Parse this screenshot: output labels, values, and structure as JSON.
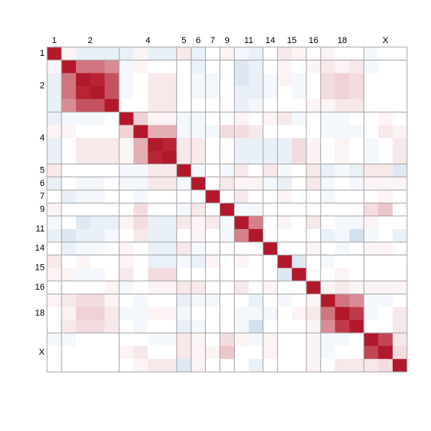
{
  "chart_data": {
    "type": "heatmap",
    "categories": [
      "1",
      "2",
      "2",
      "2",
      "2",
      "4",
      "4",
      "4",
      "4",
      "5",
      "6",
      "7",
      "9",
      "11",
      "11",
      "14",
      "15",
      "15",
      "16",
      "18",
      "18",
      "18",
      "X",
      "X",
      "X"
    ],
    "zlim": [
      -1,
      1
    ],
    "colors": {
      "low": "#2166ac",
      "mid": "#ffffff",
      "high": "#b2182b"
    },
    "matrix": [
      [
        1,
        0.05,
        -0.1,
        -0.1,
        -0.1,
        -0.1,
        0.05,
        -0.1,
        -0.1,
        0.1,
        -0.1,
        0,
        0.05,
        -0.05,
        -0.1,
        0,
        0.1,
        0.05,
        0,
        0.05,
        0,
        0,
        -0.05,
        0,
        0
      ],
      [
        0.05,
        1,
        0.6,
        0.6,
        0.5,
        -0.05,
        0.05,
        0,
        0,
        0,
        -0.1,
        0,
        0,
        -0.15,
        -0.1,
        0,
        0.05,
        0,
        0.05,
        0.1,
        0.05,
        0.1,
        -0.05,
        0,
        0
      ],
      [
        -0.1,
        0.6,
        1,
        0.95,
        0.75,
        -0.05,
        0,
        0.1,
        0.1,
        0,
        -0.05,
        -0.05,
        0,
        -0.15,
        -0.1,
        -0.05,
        0.05,
        -0.05,
        0,
        0.15,
        0.2,
        0.15,
        0,
        0,
        0
      ],
      [
        -0.1,
        0.6,
        0.95,
        1,
        0.75,
        -0.05,
        0,
        0.1,
        0.1,
        0,
        -0.05,
        -0.05,
        0,
        -0.1,
        -0.1,
        -0.05,
        0,
        -0.05,
        0,
        0.15,
        0.2,
        0.15,
        0,
        0,
        0
      ],
      [
        -0.1,
        0.5,
        0.75,
        0.75,
        1,
        0,
        0,
        0.1,
        0.1,
        0,
        0,
        0,
        0,
        -0.1,
        -0.05,
        0,
        0,
        0,
        0.05,
        0.05,
        0.1,
        0.1,
        0,
        0,
        0
      ],
      [
        -0.1,
        -0.05,
        -0.05,
        -0.05,
        0,
        1,
        0.2,
        0.05,
        0.05,
        -0.05,
        -0.05,
        0,
        0,
        0.05,
        0,
        0.05,
        0.1,
        -0.05,
        0,
        -0.05,
        -0.05,
        0,
        0,
        0.05,
        0
      ],
      [
        0.05,
        0.05,
        0,
        0,
        0,
        0.2,
        1,
        0.35,
        0.35,
        -0.05,
        -0.05,
        -0.05,
        0.15,
        0.15,
        0.1,
        0,
        0,
        0,
        0,
        -0.05,
        -0.05,
        -0.05,
        0,
        0.1,
        0.05
      ],
      [
        -0.1,
        0,
        0.1,
        0.1,
        0.1,
        0.05,
        0.35,
        1,
        0.95,
        0.1,
        0.1,
        0,
        0,
        -0.1,
        -0.1,
        -0.1,
        -0.1,
        0.15,
        0.05,
        0,
        0.05,
        0,
        -0.05,
        0,
        0.1
      ],
      [
        -0.1,
        0,
        0.1,
        0.1,
        0.1,
        0.05,
        0.35,
        0.95,
        1,
        0.1,
        0.1,
        0,
        0,
        -0.1,
        -0.1,
        -0.1,
        -0.1,
        0.15,
        0.05,
        0,
        0.05,
        0,
        -0.05,
        0,
        0.1
      ],
      [
        0.1,
        0,
        0,
        0,
        0,
        -0.05,
        -0.05,
        0.1,
        0.1,
        1,
        -0.05,
        0,
        -0.05,
        0.1,
        0,
        0.1,
        -0.05,
        0,
        0.1,
        -0.1,
        -0.05,
        -0.1,
        0.1,
        0.1,
        -0.15
      ],
      [
        -0.1,
        0,
        -0.05,
        -0.05,
        0,
        -0.05,
        -0.05,
        0.1,
        0.1,
        -0.05,
        1,
        0,
        0.1,
        0.05,
        0.05,
        -0.05,
        -0.1,
        0,
        0.1,
        -0.05,
        0,
        -0.05,
        0.05,
        0.05,
        0.05
      ],
      [
        0,
        -0.1,
        -0.05,
        -0.05,
        0,
        0,
        -0.05,
        0,
        0,
        0,
        0,
        1,
        0,
        0.1,
        0,
        0,
        0.05,
        0,
        0,
        -0.05,
        0,
        0,
        0,
        0.05,
        0
      ],
      [
        0.05,
        0,
        0,
        0,
        0,
        0,
        0.15,
        0,
        0,
        -0.05,
        0.1,
        0,
        1,
        -0.05,
        -0.05,
        0,
        0,
        0,
        0,
        0,
        0,
        0,
        0.15,
        0.25,
        0
      ],
      [
        -0.05,
        0,
        -0.15,
        -0.1,
        -0.1,
        0.05,
        0.15,
        -0.1,
        -0.1,
        0.1,
        0.05,
        0.1,
        -0.05,
        1,
        0.55,
        0,
        0.05,
        0,
        0.1,
        0,
        -0.05,
        -0.05,
        0.05,
        0,
        0
      ],
      [
        -0.1,
        -0.15,
        -0.1,
        -0.1,
        -0.05,
        0,
        0.1,
        -0.1,
        -0.1,
        0,
        0.05,
        0,
        -0.05,
        0.55,
        1,
        0,
        0,
        0,
        0,
        -0.1,
        -0.05,
        -0.2,
        -0.05,
        0,
        -0.1
      ],
      [
        0,
        -0.1,
        -0.05,
        -0.05,
        0,
        0.05,
        0,
        -0.1,
        -0.1,
        0.1,
        -0.05,
        0,
        0,
        0,
        0,
        1,
        0,
        0,
        0.05,
        0,
        -0.05,
        0,
        0.05,
        0.05,
        0
      ],
      [
        0.1,
        0,
        0.05,
        0,
        0,
        0.05,
        0,
        -0.1,
        -0.1,
        -0.05,
        -0.1,
        0.05,
        0,
        0.05,
        0,
        0,
        1,
        -0.15,
        0,
        -0.05,
        0,
        0,
        0,
        0,
        0
      ],
      [
        0.05,
        0.05,
        -0.05,
        -0.05,
        0,
        0.1,
        0,
        0.15,
        0.15,
        0,
        0,
        0,
        0,
        0,
        0,
        0,
        -0.15,
        1,
        0,
        0,
        0.05,
        0,
        0,
        0,
        0
      ],
      [
        0,
        0,
        0,
        0,
        0.05,
        -0.05,
        0,
        0.05,
        0.05,
        0.1,
        0.1,
        0,
        0,
        0.1,
        0,
        0.05,
        0,
        0,
        1,
        0.05,
        0.1,
        0.05,
        0.05,
        0.05,
        0.05
      ],
      [
        0.05,
        0.1,
        0.15,
        0.15,
        0.05,
        0,
        -0.05,
        0,
        0,
        -0.1,
        -0.05,
        -0.05,
        0,
        0,
        -0.1,
        0,
        -0.05,
        0,
        0.05,
        1,
        0.6,
        0.5,
        -0.05,
        -0.05,
        0
      ],
      [
        0,
        0.05,
        0.2,
        0.2,
        0.1,
        -0.05,
        -0.05,
        0.05,
        0.05,
        -0.05,
        0,
        0,
        0,
        -0.05,
        -0.05,
        -0.05,
        0,
        0.05,
        0.1,
        0.6,
        1,
        0.85,
        -0.05,
        0,
        0.1
      ],
      [
        0,
        0.1,
        0.15,
        0.15,
        0.1,
        0,
        -0.05,
        0,
        0,
        -0.1,
        -0.05,
        0,
        0,
        -0.05,
        -0.2,
        0,
        0,
        0,
        0.05,
        0.5,
        0.85,
        1,
        0,
        0,
        0.1
      ],
      [
        -0.05,
        -0.05,
        0,
        0,
        0,
        0,
        0,
        -0.05,
        -0.05,
        0.1,
        0.05,
        0,
        0.15,
        0.05,
        -0.05,
        0.05,
        0,
        0,
        0.05,
        -0.05,
        -0.05,
        0,
        1,
        0.8,
        0.1
      ],
      [
        0,
        0,
        0,
        0,
        0,
        0.05,
        0.1,
        0,
        0,
        0.1,
        0.05,
        0.05,
        0.25,
        0,
        0,
        0.05,
        0,
        0,
        0.05,
        -0.05,
        0,
        0,
        0.8,
        1,
        0.15
      ],
      [
        0,
        0,
        0,
        0,
        0,
        0,
        0.05,
        0.1,
        0.1,
        -0.15,
        0.05,
        0,
        0,
        0,
        -0.1,
        0,
        0,
        0,
        0.05,
        0,
        0.1,
        0.1,
        0.1,
        0.15,
        1
      ]
    ]
  }
}
